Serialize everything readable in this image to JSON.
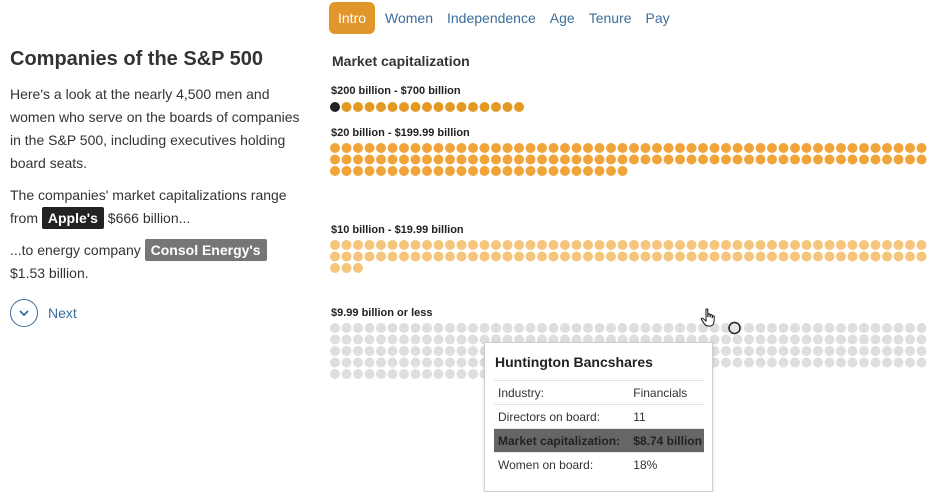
{
  "tabs": [
    {
      "label": "Intro",
      "active": true
    },
    {
      "label": "Women",
      "active": false
    },
    {
      "label": "Independence",
      "active": false
    },
    {
      "label": "Age",
      "active": false
    },
    {
      "label": "Tenure",
      "active": false
    },
    {
      "label": "Pay",
      "active": false
    }
  ],
  "intro": {
    "title": "Companies of the S&P 500",
    "paragraph1": "Here's a look at the nearly 4,500 men and women who serve on the boards of companies in the S&P 500, including executives holding board seats.",
    "p2_before": "The companies' market capitalizations range from",
    "p2_highlight": "Apple's",
    "p2_after": "$666 billion...",
    "p3_before": "...to energy company",
    "p3_highlight": "Consol Energy's",
    "p3_after": "$1.53 billion.",
    "next_label": "Next",
    "next_icon": "chevron-down-icon"
  },
  "chart": {
    "title": "Market capitalization",
    "groups": [
      {
        "label": "$200 billion - $700 billion",
        "count": 17,
        "color": "#e29a25"
      },
      {
        "label": "$20 billion - $199.99 billion",
        "count": 130,
        "color": "#f0a43a"
      },
      {
        "label": "$10 billion - $19.99 billion",
        "count": 107,
        "color": "#f5c57c"
      },
      {
        "label": "$9.99 billion or less",
        "count": 240,
        "color": "#dedede"
      }
    ],
    "highlight_color": "#222222"
  },
  "tooltip": {
    "title": "Huntington Bancshares",
    "rows": [
      {
        "label": "Industry:",
        "value": "Financials"
      },
      {
        "label": "Directors on board:",
        "value": "11"
      },
      {
        "label": "Market capitalization:",
        "value": "$8.74 billion"
      },
      {
        "label": "Women on board:",
        "value": "18%"
      }
    ]
  },
  "cursor_icon": "hand-pointer-icon"
}
